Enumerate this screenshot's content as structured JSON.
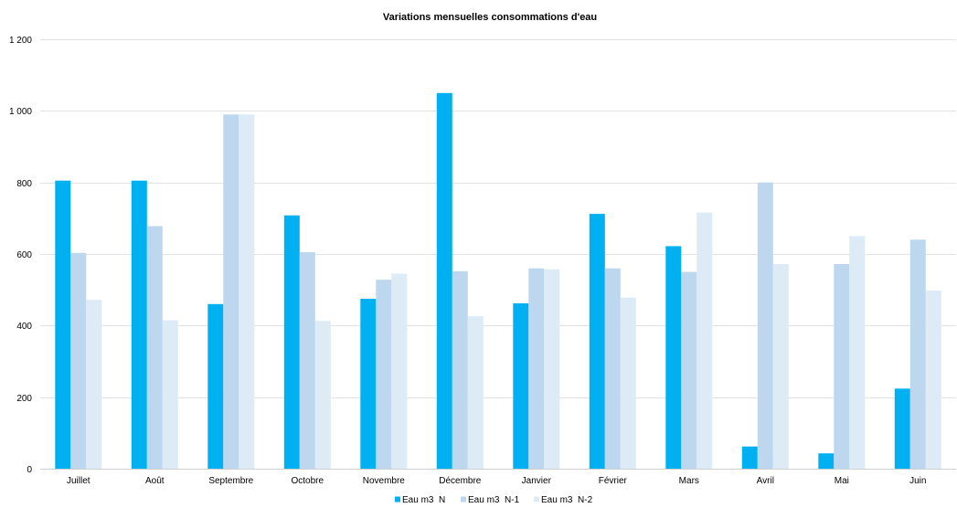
{
  "chart_data": {
    "type": "bar",
    "title": "Variations mensuelles consommations d'eau",
    "xlabel": "",
    "ylabel": "",
    "categories": [
      "Juillet",
      "Août",
      "Septembre",
      "Octobre",
      "Novembre",
      "Décembre",
      "Janvier",
      "Février",
      "Mars",
      "Avril",
      "Mai",
      "Juin"
    ],
    "series": [
      {
        "name": "Eau m3  N",
        "color": "#00b0f0",
        "values": [
          805,
          805,
          460,
          708,
          475,
          1050,
          462,
          712,
          622,
          62,
          43,
          224
        ]
      },
      {
        "name": "Eau m3  N-1",
        "color": "#bdd7ee",
        "values": [
          603,
          678,
          990,
          605,
          528,
          552,
          560,
          560,
          550,
          800,
          572,
          640
        ]
      },
      {
        "name": "Eau m3  N-2",
        "color": "#ddebf7",
        "values": [
          472,
          415,
          990,
          413,
          545,
          426,
          557,
          478,
          716,
          572,
          650,
          498
        ]
      }
    ],
    "ylim": [
      0,
      1200
    ],
    "yticks": [
      0,
      200,
      400,
      600,
      800,
      1000,
      1200
    ],
    "ytick_labels": [
      "0",
      "200",
      "400",
      "600",
      "800",
      "1 000",
      "1 200"
    ],
    "grid": true,
    "legend_position": "bottom"
  }
}
